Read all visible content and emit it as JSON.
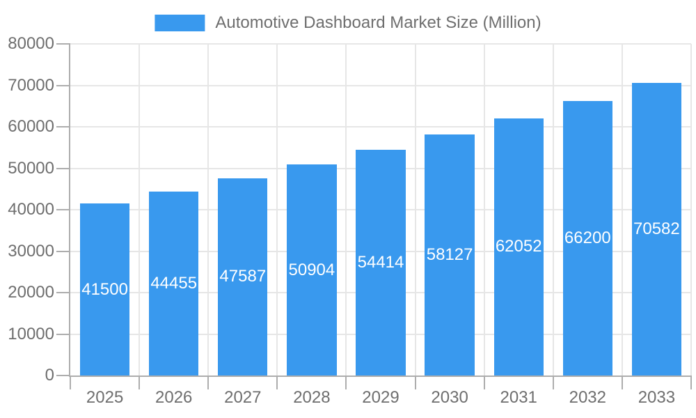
{
  "legend": {
    "position": "top-center",
    "swatch_color": "#3999EE"
  },
  "chart_data": {
    "type": "bar",
    "title": "Automotive Dashboard Market Size (Million)",
    "categories": [
      "2025",
      "2026",
      "2027",
      "2028",
      "2029",
      "2030",
      "2031",
      "2032",
      "2033"
    ],
    "values": [
      41500,
      44455,
      47587,
      50904,
      54414,
      58127,
      62052,
      66200,
      70582
    ],
    "xlabel": "",
    "ylabel": "",
    "ylim": [
      0,
      80000
    ],
    "ytick_step": 10000,
    "ytick_labels": [
      "0",
      "10000",
      "20000",
      "30000",
      "40000",
      "50000",
      "60000",
      "70000",
      "80000"
    ],
    "grid": true,
    "legend_position": "top",
    "bar_color": "#3999EE",
    "value_label_color": "#FFFFFF",
    "text_color": "#6E6E6E",
    "grid_color": "#E6E6E6",
    "axis_color": "#ADADAD",
    "background_color": "#FFFFFF"
  }
}
